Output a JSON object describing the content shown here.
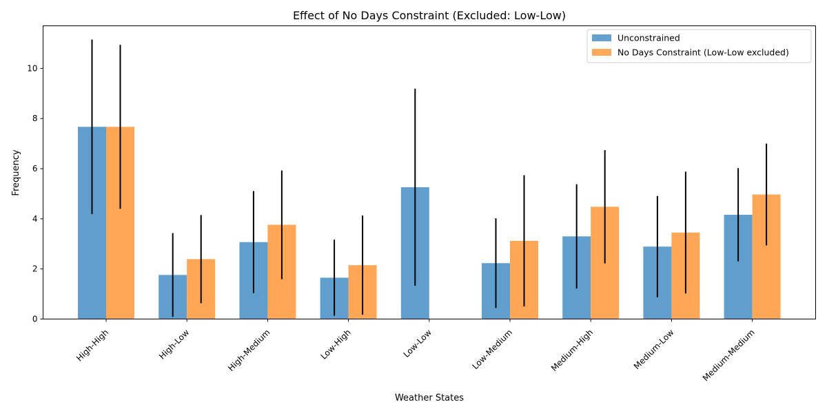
{
  "chart_data": {
    "type": "bar",
    "title": "Effect of No Days Constraint (Excluded: Low-Low)",
    "xlabel": "Weather States",
    "ylabel": "Frequency",
    "ylim": [
      0,
      11.7
    ],
    "yticks": [
      0,
      2,
      4,
      6,
      8,
      10
    ],
    "categories": [
      "High-High",
      "High-Low",
      "High-Medium",
      "Low-High",
      "Low-Low",
      "Low-Medium",
      "Medium-High",
      "Medium-Low",
      "Medium-Medium"
    ],
    "series": [
      {
        "name": "Unconstrained",
        "color": "#5f9ecd",
        "values": [
          7.67,
          1.76,
          3.07,
          1.65,
          5.26,
          2.23,
          3.3,
          2.89,
          4.16
        ],
        "errors": [
          3.48,
          1.67,
          2.04,
          1.52,
          3.93,
          1.79,
          2.08,
          2.02,
          1.86
        ]
      },
      {
        "name": "No Days Constraint (Low-Low excluded)",
        "color": "#ffa657",
        "values": [
          7.67,
          2.39,
          3.76,
          2.15,
          0,
          3.12,
          4.48,
          3.45,
          4.97
        ],
        "errors": [
          3.27,
          1.76,
          2.17,
          1.98,
          0,
          2.62,
          2.26,
          2.43,
          2.03
        ]
      }
    ],
    "legend_position": "top-right",
    "grid": false
  }
}
